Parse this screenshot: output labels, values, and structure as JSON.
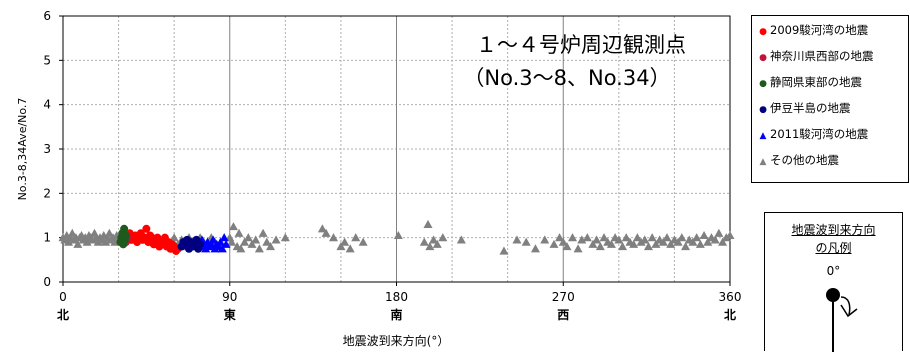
{
  "chart_data": {
    "type": "scatter",
    "title": "１～４号炉周辺観測点",
    "subtitle": "（No.3～8、No.34）",
    "xlabel": "地震波到来方向(°）",
    "ylabel": "No.3-8,34Ave/No.7",
    "xlim": [
      0,
      360
    ],
    "ylim": [
      0,
      6
    ],
    "xticks": [
      0,
      90,
      180,
      270,
      360
    ],
    "xtick_labels": [
      "0",
      "90",
      "180",
      "270",
      "360"
    ],
    "direction_labels": [
      "北",
      "東",
      "南",
      "西",
      "北"
    ],
    "yticks": [
      0,
      1,
      2,
      3,
      4,
      5,
      6
    ],
    "ytick_labels": [
      "0",
      "1",
      "2",
      "3",
      "4",
      "5",
      "6"
    ],
    "grid": true,
    "legend_position": "outside-right",
    "series": [
      {
        "name": "2009駿河湾の地震",
        "marker": "circle",
        "color": "#ff0000",
        "points": [
          [
            32,
            1.0
          ],
          [
            33,
            1.05
          ],
          [
            34,
            0.95
          ],
          [
            35,
            1.0
          ],
          [
            36,
            1.1
          ],
          [
            37,
            0.95
          ],
          [
            38,
            1.0
          ],
          [
            39,
            1.05
          ],
          [
            40,
            0.9
          ],
          [
            41,
            1.0
          ],
          [
            42,
            1.1
          ],
          [
            43,
            0.95
          ],
          [
            44,
            1.0
          ],
          [
            45,
            1.2
          ],
          [
            46,
            0.9
          ],
          [
            47,
            1.05
          ],
          [
            48,
            1.0
          ],
          [
            49,
            0.85
          ],
          [
            50,
            0.95
          ],
          [
            51,
            1.0
          ],
          [
            52,
            0.8
          ],
          [
            53,
            0.9
          ],
          [
            54,
            0.85
          ],
          [
            55,
            1.0
          ],
          [
            56,
            0.8
          ],
          [
            57,
            0.9
          ],
          [
            58,
            0.75
          ],
          [
            59,
            0.85
          ],
          [
            60,
            0.8
          ],
          [
            61,
            0.7
          ],
          [
            62,
            0.75
          ]
        ]
      },
      {
        "name": "神奈川県西部の地震",
        "marker": "circle",
        "color": "#c0143c",
        "points": [
          [
            33,
            0.95
          ],
          [
            34,
            0.9
          ],
          [
            35,
            1.0
          ]
        ]
      },
      {
        "name": "静岡県東部の地震",
        "marker": "circle",
        "color": "#1e5a1e",
        "points": [
          [
            31,
            0.9
          ],
          [
            31.5,
            1.0
          ],
          [
            32,
            1.1
          ],
          [
            32.5,
            0.85
          ],
          [
            33,
            1.2
          ],
          [
            33.5,
            0.95
          ],
          [
            34,
            1.05
          ]
        ]
      },
      {
        "name": "伊豆半島の地震",
        "marker": "circle",
        "color": "#000080",
        "points": [
          [
            64,
            0.8
          ],
          [
            65,
            0.9
          ],
          [
            66,
            0.85
          ],
          [
            67,
            0.95
          ],
          [
            68,
            0.75
          ],
          [
            69,
            0.9
          ],
          [
            70,
            0.8
          ],
          [
            71,
            0.85
          ],
          [
            72,
            0.95
          ],
          [
            73,
            0.75
          ],
          [
            74,
            0.85
          ]
        ]
      },
      {
        "name": "2011駿河湾の地震",
        "marker": "triangle",
        "color": "#0000ff",
        "points": [
          [
            72,
            0.9
          ],
          [
            74,
            0.8
          ],
          [
            75,
            0.95
          ],
          [
            76,
            0.85
          ],
          [
            77,
            0.75
          ],
          [
            78,
            0.9
          ],
          [
            79,
            0.8
          ],
          [
            80,
            0.85
          ],
          [
            81,
            0.95
          ],
          [
            82,
            0.75
          ],
          [
            83,
            0.85
          ],
          [
            84,
            0.8
          ],
          [
            85,
            0.9
          ],
          [
            86,
            0.75
          ],
          [
            87,
            1.0
          ],
          [
            88,
            0.85
          ]
        ]
      },
      {
        "name": "その他の地震",
        "marker": "triangle",
        "color": "#808080",
        "points": [
          [
            0,
            1.0
          ],
          [
            1,
            0.95
          ],
          [
            2,
            1.05
          ],
          [
            3,
            0.9
          ],
          [
            4,
            1.0
          ],
          [
            5,
            1.1
          ],
          [
            6,
            0.95
          ],
          [
            7,
            1.0
          ],
          [
            8,
            0.85
          ],
          [
            9,
            1.0
          ],
          [
            10,
            1.05
          ],
          [
            11,
            0.95
          ],
          [
            12,
            1.0
          ],
          [
            13,
            0.9
          ],
          [
            14,
            1.05
          ],
          [
            15,
            1.0
          ],
          [
            16,
            0.95
          ],
          [
            17,
            1.1
          ],
          [
            18,
            1.0
          ],
          [
            19,
            0.9
          ],
          [
            20,
            1.0
          ],
          [
            21,
            0.95
          ],
          [
            22,
            1.05
          ],
          [
            23,
            0.9
          ],
          [
            24,
            1.0
          ],
          [
            25,
            1.1
          ],
          [
            26,
            0.95
          ],
          [
            27,
            1.0
          ],
          [
            28,
            0.9
          ],
          [
            29,
            1.05
          ],
          [
            30,
            0.95
          ],
          [
            48,
            1.0
          ],
          [
            52,
            0.95
          ],
          [
            56,
            0.9
          ],
          [
            60,
            1.0
          ],
          [
            62,
            0.85
          ],
          [
            64,
            0.95
          ],
          [
            66,
            0.8
          ],
          [
            68,
            1.0
          ],
          [
            70,
            0.9
          ],
          [
            72,
            0.95
          ],
          [
            74,
            1.0
          ],
          [
            76,
            0.9
          ],
          [
            78,
            0.85
          ],
          [
            80,
            1.0
          ],
          [
            82,
            0.9
          ],
          [
            90,
            1.0
          ],
          [
            91,
            0.9
          ],
          [
            92,
            1.25
          ],
          [
            94,
            0.8
          ],
          [
            95,
            1.1
          ],
          [
            96,
            0.75
          ],
          [
            98,
            0.9
          ],
          [
            100,
            1.0
          ],
          [
            102,
            0.85
          ],
          [
            104,
            0.95
          ],
          [
            106,
            0.75
          ],
          [
            108,
            1.1
          ],
          [
            110,
            0.9
          ],
          [
            112,
            0.8
          ],
          [
            115,
            0.95
          ],
          [
            120,
            1.0
          ],
          [
            140,
            1.2
          ],
          [
            142,
            1.1
          ],
          [
            146,
            1.0
          ],
          [
            150,
            0.8
          ],
          [
            152,
            0.9
          ],
          [
            155,
            0.75
          ],
          [
            158,
            1.0
          ],
          [
            162,
            0.9
          ],
          [
            181,
            1.05
          ],
          [
            195,
            0.9
          ],
          [
            197,
            1.3
          ],
          [
            198,
            0.8
          ],
          [
            200,
            0.95
          ],
          [
            202,
            0.85
          ],
          [
            205,
            1.0
          ],
          [
            215,
            0.95
          ],
          [
            238,
            0.7
          ],
          [
            245,
            0.95
          ],
          [
            250,
            0.9
          ],
          [
            255,
            0.75
          ],
          [
            260,
            0.95
          ],
          [
            265,
            0.85
          ],
          [
            268,
            1.0
          ],
          [
            270,
            0.9
          ],
          [
            272,
            0.8
          ],
          [
            275,
            1.0
          ],
          [
            278,
            0.75
          ],
          [
            280,
            0.95
          ],
          [
            283,
            1.0
          ],
          [
            286,
            0.85
          ],
          [
            288,
            0.95
          ],
          [
            290,
            0.8
          ],
          [
            292,
            1.0
          ],
          [
            294,
            0.9
          ],
          [
            296,
            0.85
          ],
          [
            298,
            1.0
          ],
          [
            300,
            0.95
          ],
          [
            302,
            0.8
          ],
          [
            304,
            1.0
          ],
          [
            306,
            0.9
          ],
          [
            308,
            0.85
          ],
          [
            310,
            1.0
          ],
          [
            312,
            0.9
          ],
          [
            314,
            0.95
          ],
          [
            316,
            0.8
          ],
          [
            318,
            1.0
          ],
          [
            320,
            0.85
          ],
          [
            322,
            0.95
          ],
          [
            324,
            0.9
          ],
          [
            326,
            1.0
          ],
          [
            328,
            0.85
          ],
          [
            330,
            0.95
          ],
          [
            332,
            0.9
          ],
          [
            334,
            1.0
          ],
          [
            336,
            0.8
          ],
          [
            338,
            0.95
          ],
          [
            340,
            0.9
          ],
          [
            342,
            1.0
          ],
          [
            344,
            0.85
          ],
          [
            346,
            1.05
          ],
          [
            348,
            0.9
          ],
          [
            350,
            1.0
          ],
          [
            352,
            0.95
          ],
          [
            354,
            1.1
          ],
          [
            356,
            0.9
          ],
          [
            358,
            1.0
          ],
          [
            360,
            1.05
          ]
        ]
      }
    ]
  },
  "compass": {
    "title_line1": "地震波到来方向",
    "title_line2": "の凡例",
    "angle_label": "0°"
  }
}
